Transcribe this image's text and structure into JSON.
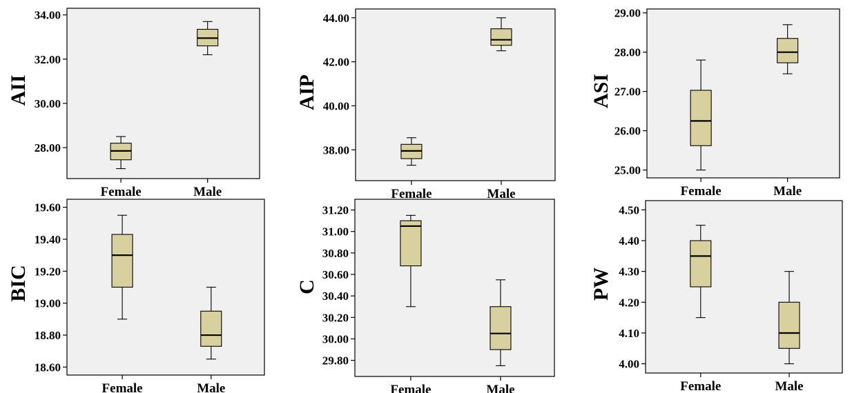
{
  "chart_data": [
    {
      "type": "boxplot",
      "ylabel": "AII",
      "categories": [
        "Female",
        "Male"
      ],
      "yticks": [
        28,
        30,
        32,
        34
      ],
      "ytick_labels": [
        "28.00",
        "30.00",
        "32.00",
        "34.00"
      ],
      "ylim": [
        26.6,
        34.3
      ],
      "boxes": [
        {
          "category": "Female",
          "min": 27.05,
          "q1": 27.45,
          "median": 27.85,
          "q3": 28.2,
          "max": 28.5
        },
        {
          "category": "Male",
          "min": 32.2,
          "q1": 32.6,
          "median": 32.95,
          "q3": 33.35,
          "max": 33.7
        }
      ],
      "grid": false,
      "fill": "#d9d09f",
      "background": "#f0f0f0"
    },
    {
      "type": "boxplot",
      "ylabel": "AIP",
      "categories": [
        "Female",
        "Male"
      ],
      "yticks": [
        38,
        40,
        42,
        44
      ],
      "ytick_labels": [
        "38.00",
        "40.00",
        "42.00",
        "44.00"
      ],
      "ylim": [
        36.6,
        44.4
      ],
      "boxes": [
        {
          "category": "Female",
          "min": 37.3,
          "q1": 37.6,
          "median": 37.95,
          "q3": 38.25,
          "max": 38.55
        },
        {
          "category": "Male",
          "min": 42.5,
          "q1": 42.75,
          "median": 43.0,
          "q3": 43.5,
          "max": 44.0
        }
      ],
      "grid": false,
      "fill": "#d9d09f",
      "background": "#f0f0f0"
    },
    {
      "type": "boxplot",
      "ylabel": "ASI",
      "categories": [
        "Female",
        "Male"
      ],
      "yticks": [
        25,
        26,
        27,
        28,
        29
      ],
      "ytick_labels": [
        "25.00",
        "26.00",
        "27.00",
        "28.00",
        "29.00"
      ],
      "ylim": [
        24.8,
        29.1
      ],
      "boxes": [
        {
          "category": "Female",
          "min": 25.0,
          "q1": 25.62,
          "median": 26.25,
          "q3": 27.03,
          "max": 27.8
        },
        {
          "category": "Male",
          "min": 27.45,
          "q1": 27.73,
          "median": 28.0,
          "q3": 28.35,
          "max": 28.7
        }
      ],
      "grid": false,
      "fill": "#d9d09f",
      "background": "#f0f0f0"
    },
    {
      "type": "boxplot",
      "ylabel": "BIC",
      "categories": [
        "Female",
        "Male"
      ],
      "yticks": [
        18.6,
        18.8,
        19.0,
        19.2,
        19.4,
        19.6
      ],
      "ytick_labels": [
        "18.60",
        "18.80",
        "19.00",
        "19.20",
        "19.40",
        "19.60"
      ],
      "ylim": [
        18.55,
        19.65
      ],
      "boxes": [
        {
          "category": "Female",
          "min": 18.9,
          "q1": 19.1,
          "median": 19.3,
          "q3": 19.43,
          "max": 19.55
        },
        {
          "category": "Male",
          "min": 18.65,
          "q1": 18.73,
          "median": 18.8,
          "q3": 18.95,
          "max": 19.1
        }
      ],
      "grid": false,
      "fill": "#d9d09f",
      "background": "#f0f0f0"
    },
    {
      "type": "boxplot",
      "ylabel": "C",
      "categories": [
        "Female",
        "Male"
      ],
      "yticks": [
        29.8,
        30.0,
        30.2,
        30.4,
        30.6,
        30.8,
        31.0,
        31.2
      ],
      "ytick_labels": [
        "29.80",
        "30.00",
        "30.20",
        "30.40",
        "30.60",
        "30.80",
        "31.00",
        "31.20"
      ],
      "ylim": [
        29.65,
        31.3
      ],
      "boxes": [
        {
          "category": "Female",
          "min": 30.3,
          "q1": 30.68,
          "median": 31.05,
          "q3": 31.1,
          "max": 31.15
        },
        {
          "category": "Male",
          "min": 29.75,
          "q1": 29.9,
          "median": 30.05,
          "q3": 30.3,
          "max": 30.55
        }
      ],
      "grid": false,
      "fill": "#d9d09f",
      "background": "#f0f0f0"
    },
    {
      "type": "boxplot",
      "ylabel": "PW",
      "categories": [
        "Female",
        "Male"
      ],
      "yticks": [
        4.0,
        4.1,
        4.2,
        4.3,
        4.4,
        4.5
      ],
      "ytick_labels": [
        "4.00",
        "4.10",
        "4.20",
        "4.30",
        "4.40",
        "4.50"
      ],
      "ylim": [
        3.97,
        4.53
      ],
      "boxes": [
        {
          "category": "Female",
          "min": 4.15,
          "q1": 4.25,
          "median": 4.35,
          "q3": 4.4,
          "max": 4.45
        },
        {
          "category": "Male",
          "min": 4.0,
          "q1": 4.05,
          "median": 4.1,
          "q3": 4.2,
          "max": 4.3
        }
      ],
      "grid": false,
      "fill": "#d9d09f",
      "background": "#f0f0f0"
    }
  ]
}
